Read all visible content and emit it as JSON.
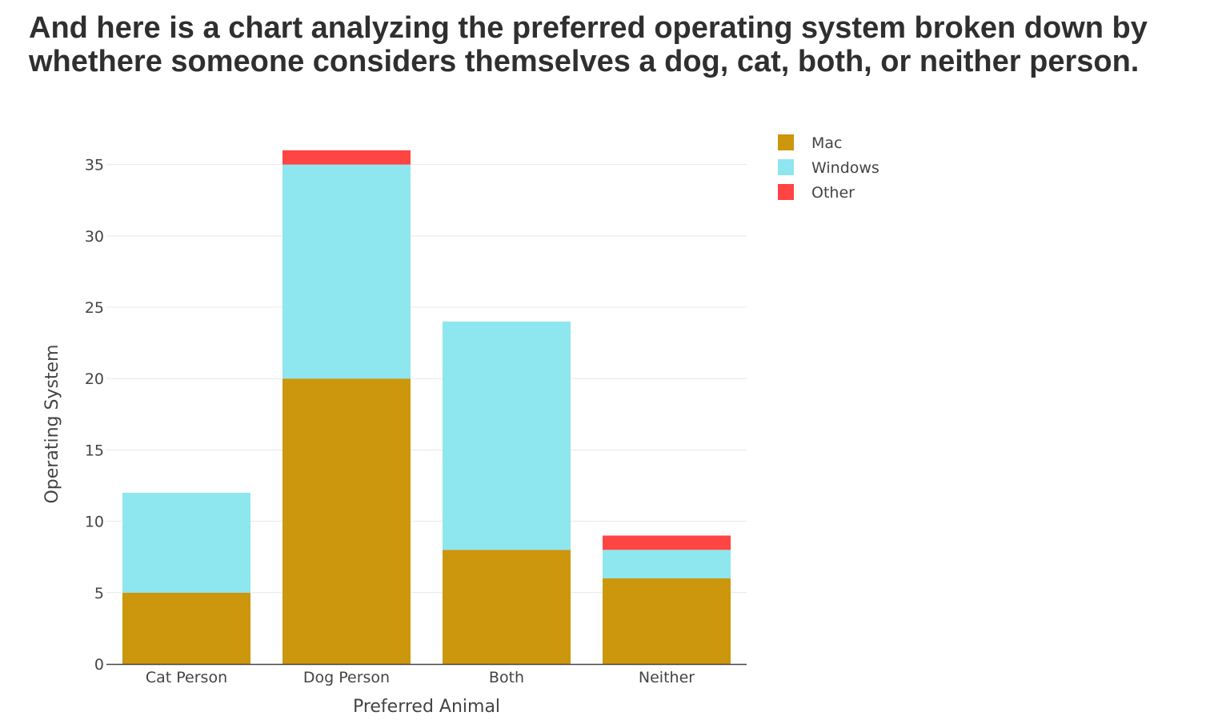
{
  "heading": {
    "line1": "And here is a chart analyzing the preferred operating system broken down by",
    "line2": "whethere someone considers themselves a dog, cat, both, or neither person."
  },
  "chart_data": {
    "type": "bar",
    "stacked": true,
    "categories": [
      "Cat Person",
      "Dog Person",
      "Both",
      "Neither"
    ],
    "series": [
      {
        "name": "Mac",
        "color": "#cc960d",
        "values": [
          5,
          20,
          8,
          6
        ]
      },
      {
        "name": "Windows",
        "color": "#8ee6ee",
        "values": [
          7,
          15,
          16,
          2
        ]
      },
      {
        "name": "Other",
        "color": "#ff4444",
        "values": [
          0,
          1,
          0,
          1
        ]
      }
    ],
    "xlabel": "Preferred Animal",
    "ylabel": "Operating System",
    "ylim": [
      0,
      37
    ],
    "yticks": [
      0,
      5,
      10,
      15,
      20,
      25,
      30,
      35
    ],
    "grid": true,
    "legend_position": "top-right"
  }
}
